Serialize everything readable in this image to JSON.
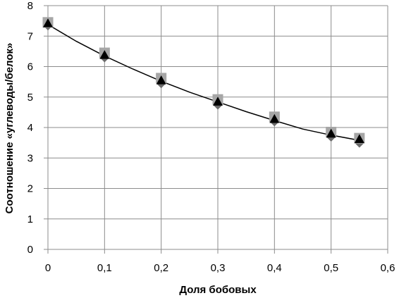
{
  "chart_data": {
    "type": "scatter",
    "title": "",
    "xlabel": "Доля бобовых",
    "ylabel": "Соотношение «углеводы/белок»",
    "xlim": [
      0,
      0.6
    ],
    "ylim": [
      0,
      8
    ],
    "x_ticks": [
      "0",
      "0,1",
      "0,2",
      "0,3",
      "0,4",
      "0,5",
      "0,6"
    ],
    "y_ticks": [
      "0",
      "1",
      "2",
      "3",
      "4",
      "5",
      "6",
      "7",
      "8"
    ],
    "grid": true,
    "legend": "none",
    "series": [
      {
        "marker": "diamond",
        "color": "#6b6b6b",
        "x": [
          0,
          0.1,
          0.2,
          0.3,
          0.4,
          0.5,
          0.55
        ],
        "y": [
          7.35,
          6.3,
          5.45,
          4.75,
          4.2,
          3.7,
          3.5
        ]
      },
      {
        "marker": "square",
        "color": "#a6a6a6",
        "x": [
          0,
          0.1,
          0.2,
          0.3,
          0.4,
          0.5,
          0.55
        ],
        "y": [
          7.45,
          6.45,
          5.62,
          4.92,
          4.35,
          3.85,
          3.65
        ]
      },
      {
        "marker": "triangle",
        "color": "#000000",
        "x": [
          0,
          0.1,
          0.2,
          0.3,
          0.4,
          0.5,
          0.55
        ],
        "y": [
          7.42,
          6.38,
          5.55,
          4.85,
          4.28,
          3.8,
          3.62
        ]
      }
    ],
    "trendline": {
      "style": "polynomial",
      "color": "#000000",
      "x": [
        0,
        0.05,
        0.1,
        0.15,
        0.2,
        0.25,
        0.3,
        0.35,
        0.4,
        0.45,
        0.5,
        0.55
      ],
      "y": [
        7.38,
        6.83,
        6.35,
        5.92,
        5.52,
        5.16,
        4.84,
        4.52,
        4.23,
        3.95,
        3.75,
        3.58
      ]
    }
  }
}
